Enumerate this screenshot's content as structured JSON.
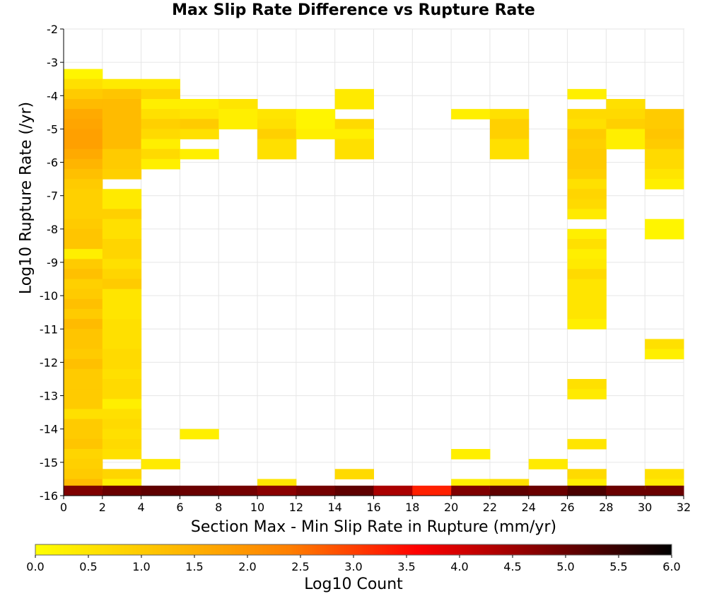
{
  "chart_data": {
    "type": "heatmap",
    "title": "Max Slip Rate Difference vs Rupture Rate",
    "xlabel": "Section Max - Min Slip Rate in Rupture (mm/yr)",
    "ylabel": "Log10 Rupture Rate (/yr)",
    "xlim": [
      0,
      32
    ],
    "ylim": [
      -16,
      -2
    ],
    "x_ticks": [
      "0",
      "2",
      "4",
      "6",
      "8",
      "10",
      "12",
      "14",
      "16",
      "18",
      "20",
      "22",
      "24",
      "26",
      "28",
      "30",
      "32"
    ],
    "y_ticks": [
      "-2",
      "-3",
      "-4",
      "-5",
      "-6",
      "-7",
      "-8",
      "-9",
      "-10",
      "-11",
      "-12",
      "-13",
      "-14",
      "-15",
      "-16"
    ],
    "grid": true,
    "colorbar": {
      "label": "Log10 Count",
      "range": [
        0,
        6
      ],
      "ticks": [
        "0.0",
        "0.5",
        "1.0",
        "1.5",
        "2.0",
        "2.5",
        "3.0",
        "3.5",
        "4.0",
        "4.5",
        "5.0",
        "5.5",
        "6.0"
      ],
      "colormap": [
        "#ffff00",
        "#ffc000",
        "#ff7f00",
        "#ff0000",
        "#7f0000",
        "#000000"
      ]
    },
    "bin_width": 2,
    "bin_height": 0.3,
    "note_cells": "each cell: [x_start, y_start(log10 rate), log10 count]",
    "cells": [
      [
        0,
        -3.5,
        0.2
      ],
      [
        0,
        -3.8,
        0.6
      ],
      [
        0,
        -4.1,
        1.0
      ],
      [
        0,
        -4.4,
        1.3
      ],
      [
        0,
        -4.7,
        1.6
      ],
      [
        0,
        -5.0,
        1.7
      ],
      [
        0,
        -5.3,
        1.8
      ],
      [
        0,
        -5.6,
        1.8
      ],
      [
        0,
        -5.9,
        1.6
      ],
      [
        0,
        -6.2,
        1.4
      ],
      [
        0,
        -6.5,
        1.2
      ],
      [
        0,
        -6.8,
        1.0
      ],
      [
        0,
        -7.1,
        0.9
      ],
      [
        0,
        -7.4,
        0.9
      ],
      [
        0,
        -7.7,
        0.9
      ],
      [
        0,
        -8.0,
        1.0
      ],
      [
        0,
        -8.3,
        1.1
      ],
      [
        0,
        -8.6,
        1.1
      ],
      [
        0,
        -8.9,
        0.3
      ],
      [
        0,
        -9.2,
        1.0
      ],
      [
        0,
        -9.5,
        1.2
      ],
      [
        0,
        -9.8,
        0.9
      ],
      [
        0,
        -10.1,
        1.0
      ],
      [
        0,
        -10.4,
        1.2
      ],
      [
        0,
        -10.7,
        1.0
      ],
      [
        0,
        -11.0,
        1.3
      ],
      [
        0,
        -11.3,
        1.1
      ],
      [
        0,
        -11.6,
        1.1
      ],
      [
        0,
        -11.9,
        1.0
      ],
      [
        0,
        -12.2,
        1.2
      ],
      [
        0,
        -12.5,
        1.0
      ],
      [
        0,
        -12.8,
        1.0
      ],
      [
        0,
        -13.1,
        1.0
      ],
      [
        0,
        -13.4,
        1.0
      ],
      [
        0,
        -13.7,
        0.6
      ],
      [
        0,
        -14.0,
        1.0
      ],
      [
        0,
        -14.3,
        1.0
      ],
      [
        0,
        -14.6,
        1.1
      ],
      [
        0,
        -14.9,
        0.8
      ],
      [
        0,
        -15.2,
        0.9
      ],
      [
        0,
        -15.5,
        1.0
      ],
      [
        0,
        -15.8,
        1.3
      ],
      [
        0,
        -16.0,
        4.8
      ],
      [
        2,
        -3.8,
        0.4
      ],
      [
        2,
        -4.1,
        1.1
      ],
      [
        2,
        -4.4,
        1.3
      ],
      [
        2,
        -4.7,
        1.3
      ],
      [
        2,
        -5.0,
        1.3
      ],
      [
        2,
        -5.3,
        1.3
      ],
      [
        2,
        -5.6,
        1.3
      ],
      [
        2,
        -5.9,
        1.0
      ],
      [
        2,
        -6.2,
        1.0
      ],
      [
        2,
        -6.5,
        0.9
      ],
      [
        2,
        -7.1,
        0.4
      ],
      [
        2,
        -7.4,
        0.4
      ],
      [
        2,
        -7.7,
        0.9
      ],
      [
        2,
        -8.0,
        0.6
      ],
      [
        2,
        -8.3,
        0.6
      ],
      [
        2,
        -8.6,
        0.8
      ],
      [
        2,
        -8.9,
        0.8
      ],
      [
        2,
        -9.2,
        0.6
      ],
      [
        2,
        -9.5,
        0.8
      ],
      [
        2,
        -9.8,
        1.0
      ],
      [
        2,
        -10.1,
        0.5
      ],
      [
        2,
        -10.4,
        0.5
      ],
      [
        2,
        -10.7,
        0.5
      ],
      [
        2,
        -11.0,
        0.6
      ],
      [
        2,
        -11.3,
        0.6
      ],
      [
        2,
        -11.6,
        0.6
      ],
      [
        2,
        -11.9,
        0.7
      ],
      [
        2,
        -12.2,
        0.7
      ],
      [
        2,
        -12.5,
        0.6
      ],
      [
        2,
        -12.8,
        0.7
      ],
      [
        2,
        -13.1,
        0.7
      ],
      [
        2,
        -13.4,
        0.3
      ],
      [
        2,
        -13.7,
        0.6
      ],
      [
        2,
        -14.0,
        0.7
      ],
      [
        2,
        -14.3,
        0.6
      ],
      [
        2,
        -14.6,
        0.7
      ],
      [
        2,
        -14.9,
        0.6
      ],
      [
        2,
        -15.5,
        0.8
      ],
      [
        2,
        -15.8,
        0.3
      ],
      [
        2,
        -16.0,
        5.0
      ],
      [
        4,
        -3.8,
        0.4
      ],
      [
        4,
        -4.1,
        0.8
      ],
      [
        4,
        -4.4,
        0.3
      ],
      [
        4,
        -4.7,
        0.6
      ],
      [
        4,
        -5.0,
        0.9
      ],
      [
        4,
        -5.3,
        0.7
      ],
      [
        4,
        -5.6,
        0.3
      ],
      [
        4,
        -5.9,
        0.7
      ],
      [
        4,
        -6.2,
        0.3
      ],
      [
        4,
        -15.2,
        0.4
      ],
      [
        4,
        -16.0,
        5.1
      ],
      [
        6,
        -4.4,
        0.3
      ],
      [
        6,
        -4.7,
        0.5
      ],
      [
        6,
        -5.0,
        1.0
      ],
      [
        6,
        -5.3,
        0.6
      ],
      [
        6,
        -5.9,
        0.3
      ],
      [
        6,
        -14.3,
        0.3
      ],
      [
        6,
        -16.0,
        5.0
      ],
      [
        8,
        -4.4,
        0.5
      ],
      [
        8,
        -4.7,
        0.3
      ],
      [
        8,
        -5.0,
        0.3
      ],
      [
        8,
        -16.0,
        4.9
      ],
      [
        10,
        -4.7,
        0.5
      ],
      [
        10,
        -5.0,
        0.6
      ],
      [
        10,
        -5.3,
        0.9
      ],
      [
        10,
        -5.6,
        0.6
      ],
      [
        10,
        -5.9,
        0.6
      ],
      [
        10,
        -15.8,
        0.5
      ],
      [
        10,
        -16.0,
        4.7
      ],
      [
        12,
        -4.7,
        0.2
      ],
      [
        12,
        -5.0,
        0.2
      ],
      [
        12,
        -5.3,
        0.3
      ],
      [
        12,
        -16.0,
        4.9
      ],
      [
        14,
        -4.1,
        0.4
      ],
      [
        14,
        -4.4,
        0.4
      ],
      [
        14,
        -5.0,
        0.7
      ],
      [
        14,
        -5.3,
        0.3
      ],
      [
        14,
        -5.6,
        0.6
      ],
      [
        14,
        -5.9,
        0.6
      ],
      [
        14,
        -15.5,
        0.7
      ],
      [
        14,
        -16.0,
        5.1
      ],
      [
        16,
        -16.0,
        4.4
      ],
      [
        18,
        -16.0,
        3.3
      ],
      [
        20,
        -4.7,
        0.3
      ],
      [
        20,
        -14.9,
        0.3
      ],
      [
        20,
        -15.8,
        0.3
      ],
      [
        20,
        -16.0,
        4.8
      ],
      [
        22,
        -4.7,
        0.6
      ],
      [
        22,
        -5.0,
        0.9
      ],
      [
        22,
        -5.3,
        0.9
      ],
      [
        22,
        -5.6,
        0.6
      ],
      [
        22,
        -5.9,
        0.6
      ],
      [
        22,
        -15.8,
        0.6
      ],
      [
        22,
        -16.0,
        5.1
      ],
      [
        24,
        -15.2,
        0.4
      ],
      [
        24,
        -16.0,
        5.0
      ],
      [
        26,
        -4.1,
        0.3
      ],
      [
        26,
        -4.7,
        0.7
      ],
      [
        26,
        -5.0,
        0.6
      ],
      [
        26,
        -5.3,
        1.0
      ],
      [
        26,
        -5.6,
        0.9
      ],
      [
        26,
        -5.9,
        1.0
      ],
      [
        26,
        -6.2,
        1.0
      ],
      [
        26,
        -6.5,
        0.9
      ],
      [
        26,
        -6.8,
        0.6
      ],
      [
        26,
        -7.1,
        0.8
      ],
      [
        26,
        -7.4,
        0.7
      ],
      [
        26,
        -7.7,
        0.4
      ],
      [
        26,
        -8.3,
        0.3
      ],
      [
        26,
        -8.6,
        0.6
      ],
      [
        26,
        -8.9,
        0.3
      ],
      [
        26,
        -9.2,
        0.4
      ],
      [
        26,
        -9.5,
        0.7
      ],
      [
        26,
        -9.8,
        0.5
      ],
      [
        26,
        -10.1,
        0.5
      ],
      [
        26,
        -10.4,
        0.5
      ],
      [
        26,
        -10.7,
        0.5
      ],
      [
        26,
        -11.0,
        0.3
      ],
      [
        26,
        -12.8,
        0.6
      ],
      [
        26,
        -13.1,
        0.4
      ],
      [
        26,
        -14.6,
        0.5
      ],
      [
        26,
        -15.5,
        0.7
      ],
      [
        26,
        -15.8,
        0.3
      ],
      [
        26,
        -16.0,
        5.3
      ],
      [
        28,
        -4.4,
        0.6
      ],
      [
        28,
        -4.7,
        0.7
      ],
      [
        28,
        -5.0,
        0.9
      ],
      [
        28,
        -5.3,
        0.3
      ],
      [
        28,
        -5.6,
        0.3
      ],
      [
        28,
        -16.0,
        5.0
      ],
      [
        30,
        -4.7,
        1.0
      ],
      [
        30,
        -5.0,
        1.0
      ],
      [
        30,
        -5.3,
        1.1
      ],
      [
        30,
        -5.6,
        1.0
      ],
      [
        30,
        -5.9,
        0.7
      ],
      [
        30,
        -6.2,
        0.7
      ],
      [
        30,
        -6.5,
        0.5
      ],
      [
        30,
        -6.8,
        0.3
      ],
      [
        30,
        -8.0,
        0.2
      ],
      [
        30,
        -8.3,
        0.2
      ],
      [
        30,
        -11.6,
        0.6
      ],
      [
        30,
        -11.9,
        0.3
      ],
      [
        30,
        -15.5,
        0.6
      ],
      [
        30,
        -15.8,
        0.4
      ],
      [
        30,
        -16.0,
        5.0
      ]
    ]
  }
}
